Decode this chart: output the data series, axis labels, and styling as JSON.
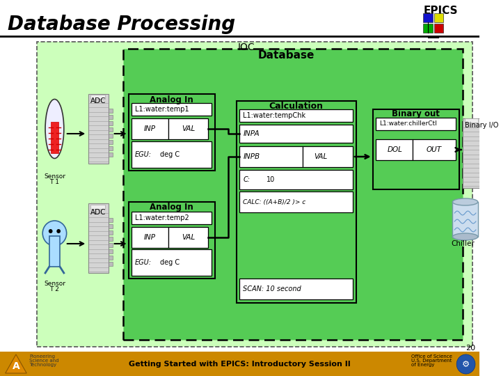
{
  "title": "Database Processing",
  "bg_color": "#ffffff",
  "ioc_bg": "#ccffcc",
  "ioc_border": "#666666",
  "db_bg": "#66dd66",
  "db_border": "#000000",
  "white_box": "#ffffff",
  "footer_bg": "#cc8800",
  "footer_text": "Getting Started with EPICS: Introductory Session II",
  "page_number": "20"
}
